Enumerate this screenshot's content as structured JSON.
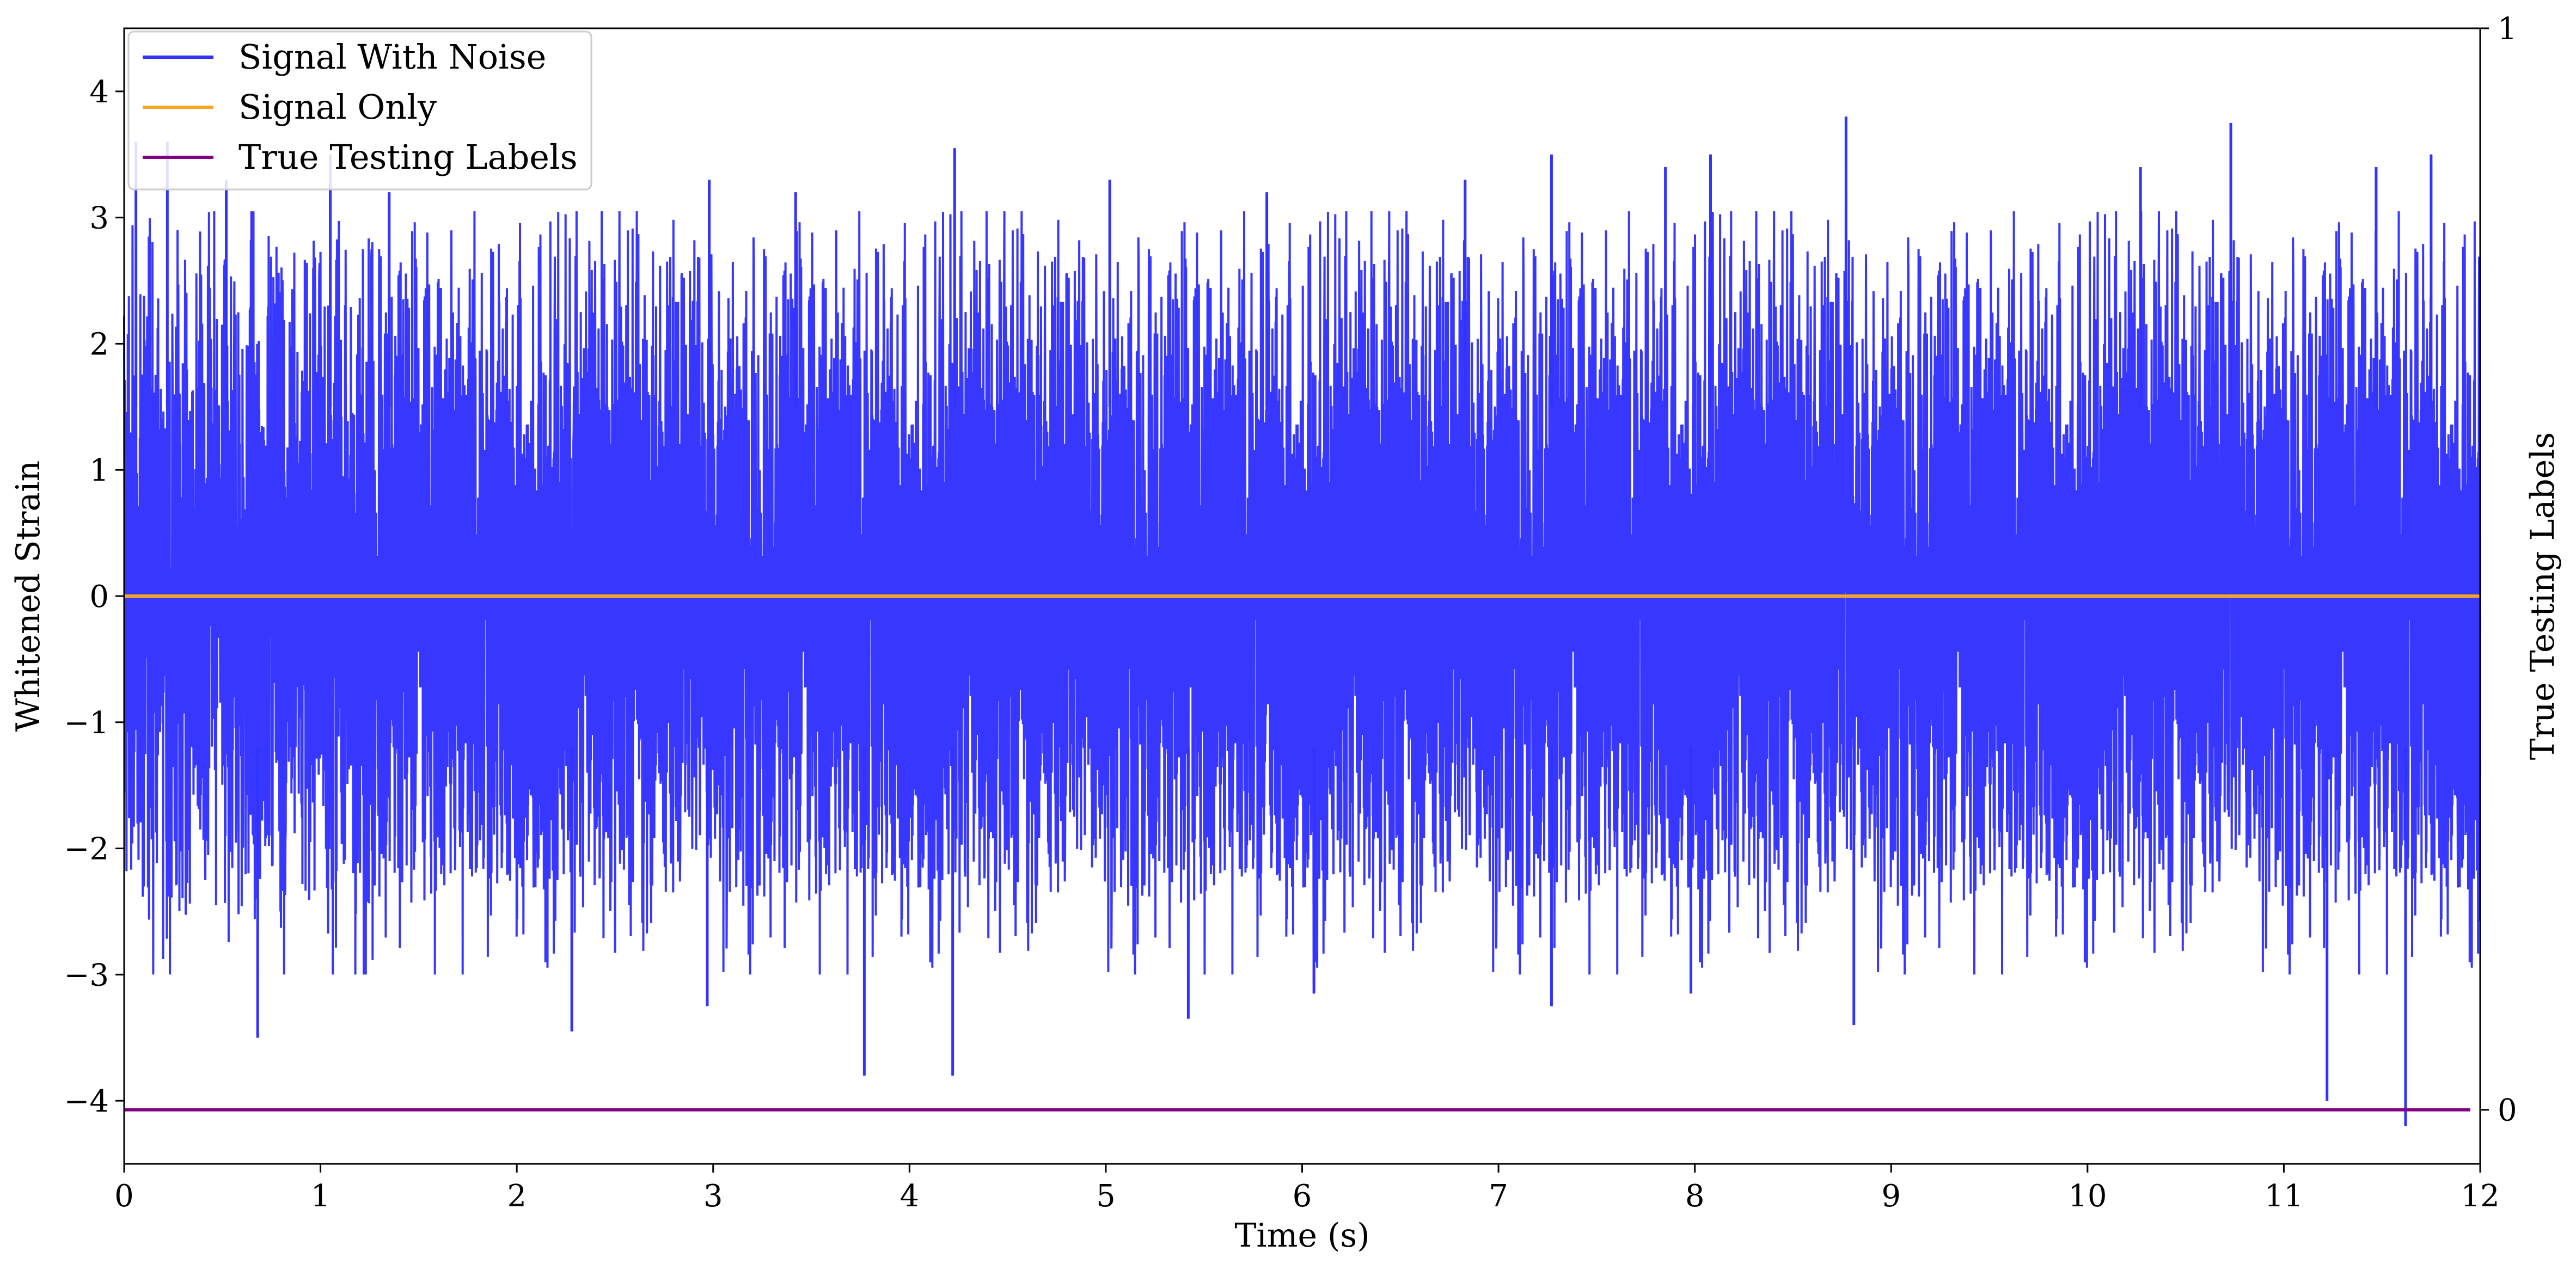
{
  "chart_data": {
    "type": "line",
    "xlabel": "Time (s)",
    "ylabel": "Whitened Strain",
    "y2label": "True Testing Labels",
    "xlim": [
      0,
      12
    ],
    "ylim": [
      -4.5,
      4.5
    ],
    "y2lim": [
      -0.05,
      1
    ],
    "x_ticks": [
      "0",
      "1",
      "2",
      "3",
      "4",
      "5",
      "6",
      "7",
      "8",
      "9",
      "10",
      "11",
      "12"
    ],
    "y_ticks": [
      {
        "value": 4,
        "label": "4"
      },
      {
        "value": 3,
        "label": "3"
      },
      {
        "value": 2,
        "label": "2"
      },
      {
        "value": 1,
        "label": "1"
      },
      {
        "value": 0,
        "label": "0"
      },
      {
        "value": -1,
        "label": "−1"
      },
      {
        "value": -2,
        "label": "−2"
      },
      {
        "value": -3,
        "label": "−3"
      },
      {
        "value": -4,
        "label": "−4"
      }
    ],
    "y2_ticks": [
      {
        "value": 1,
        "label": "1"
      },
      {
        "value": 0,
        "label": "0"
      }
    ],
    "grid": false,
    "legend_position": "top-left",
    "series": [
      {
        "name": "Signal With Noise",
        "color": "#3333ff",
        "axis": "left",
        "kind": "dense-noise",
        "x_range": [
          0,
          12
        ],
        "typical_band": [
          -1.8,
          2.3
        ],
        "peaks": [
          {
            "x": 0.06,
            "y": 3.6
          },
          {
            "x": 0.22,
            "y": 3.6
          },
          {
            "x": 0.52,
            "y": 3.3
          },
          {
            "x": 1.05,
            "y": 3.5
          },
          {
            "x": 1.35,
            "y": 3.2
          },
          {
            "x": 2.98,
            "y": 3.3
          },
          {
            "x": 3.42,
            "y": 3.2
          },
          {
            "x": 4.23,
            "y": 3.55
          },
          {
            "x": 5.02,
            "y": 3.3
          },
          {
            "x": 5.82,
            "y": 3.2
          },
          {
            "x": 6.83,
            "y": 3.3
          },
          {
            "x": 7.27,
            "y": 3.5
          },
          {
            "x": 7.85,
            "y": 3.4
          },
          {
            "x": 8.08,
            "y": 3.5
          },
          {
            "x": 8.77,
            "y": 3.8
          },
          {
            "x": 10.27,
            "y": 3.4
          },
          {
            "x": 10.73,
            "y": 3.75
          },
          {
            "x": 11.47,
            "y": 3.4
          },
          {
            "x": 11.75,
            "y": 3.5
          }
        ],
        "troughs": [
          {
            "x": 0.68,
            "y": -3.5
          },
          {
            "x": 2.28,
            "y": -3.45
          },
          {
            "x": 2.97,
            "y": -3.25
          },
          {
            "x": 3.77,
            "y": -3.8
          },
          {
            "x": 4.22,
            "y": -3.8
          },
          {
            "x": 5.42,
            "y": -3.35
          },
          {
            "x": 6.06,
            "y": -3.15
          },
          {
            "x": 7.27,
            "y": -3.25
          },
          {
            "x": 7.98,
            "y": -3.15
          },
          {
            "x": 8.81,
            "y": -3.4
          },
          {
            "x": 11.22,
            "y": -4.0
          },
          {
            "x": 11.62,
            "y": -4.2
          }
        ]
      },
      {
        "name": "Signal Only",
        "color": "#f5a623",
        "axis": "left",
        "x": [
          0,
          12
        ],
        "y": [
          0,
          0
        ]
      },
      {
        "name": "True Testing Labels",
        "color": "#800080",
        "axis": "right",
        "x": [
          0,
          11.95
        ],
        "y": [
          0,
          0
        ]
      }
    ]
  }
}
